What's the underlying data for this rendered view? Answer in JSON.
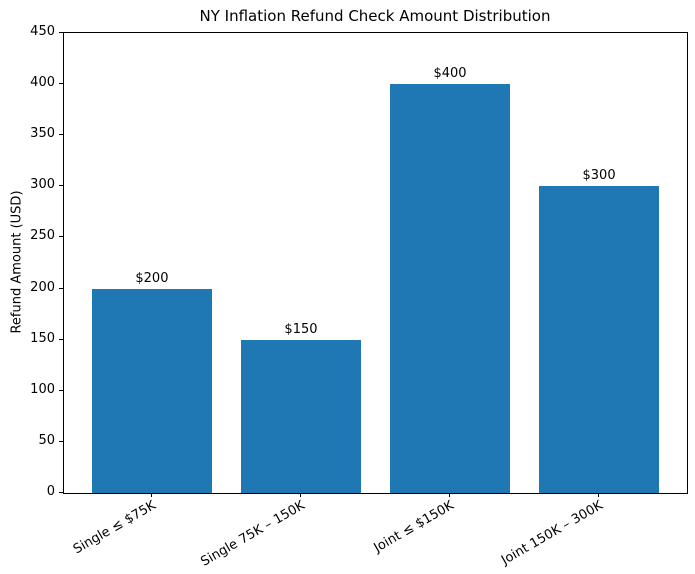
{
  "chart_data": {
    "type": "bar",
    "title": "NY Inflation Refund Check Amount Distribution",
    "ylabel": "Refund Amount (USD)",
    "xlabel": "",
    "categories": [
      "Single ≤ $75K",
      "Single 75K – 150K",
      "Joint ≤ $150K",
      "Joint 150K – 300K"
    ],
    "values": [
      200,
      150,
      400,
      300
    ],
    "bar_value_labels": [
      "$200",
      "$150",
      "$400",
      "$300"
    ],
    "yticks": [
      0,
      50,
      100,
      150,
      200,
      250,
      300,
      350,
      400,
      450
    ],
    "ylim": [
      0,
      450
    ],
    "xlim": [
      -0.59,
      3.59
    ],
    "bar_width_units": 0.8,
    "x_tick_label_rotation_deg": 30,
    "grid": false,
    "legend": "none",
    "colors": {
      "bar": "#1f77b4",
      "text": "#000000",
      "spine": "#000000",
      "background": "#ffffff"
    }
  }
}
